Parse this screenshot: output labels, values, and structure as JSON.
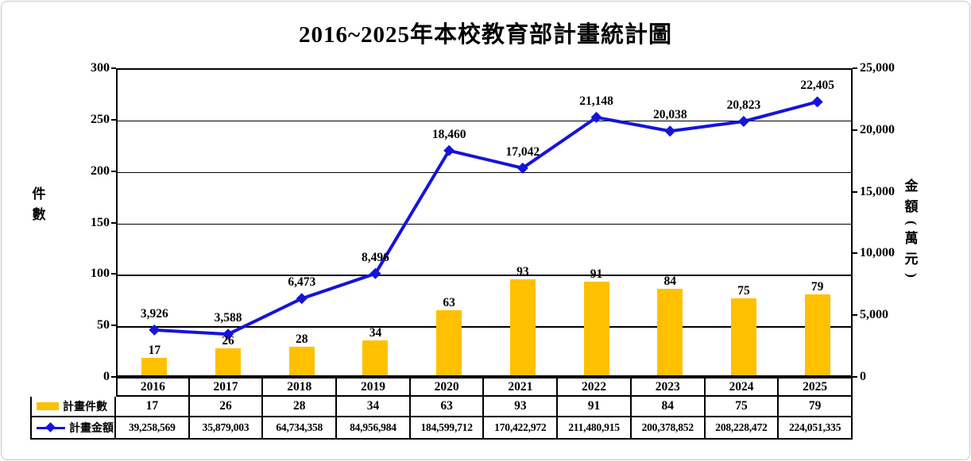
{
  "title": "2016~2025年本校教育部計畫統計圖",
  "colors": {
    "bar": "#FFC000",
    "line": "#1414DB",
    "axis": "#000000",
    "frame_border": "#c9c9c9"
  },
  "chart_data": {
    "type": "bar+line",
    "title": "2016~2025年本校教育部計畫統計圖",
    "categories": [
      "2016",
      "2017",
      "2018",
      "2019",
      "2020",
      "2021",
      "2022",
      "2023",
      "2024",
      "2025"
    ],
    "series": [
      {
        "name": "計畫件數",
        "type": "bar",
        "axis": "left",
        "color": "#FFC000",
        "values": [
          17,
          26,
          28,
          34,
          63,
          93,
          91,
          84,
          75,
          79
        ],
        "labels": [
          "17",
          "26",
          "28",
          "34",
          "63",
          "93",
          "91",
          "84",
          "75",
          "79"
        ]
      },
      {
        "name": "計畫金額",
        "type": "line",
        "axis": "right",
        "color": "#1414DB",
        "values": [
          3926,
          3588,
          6473,
          8496,
          18460,
          17042,
          21148,
          20038,
          20823,
          22405
        ],
        "labels": [
          "3,926",
          "3,588",
          "6,473",
          "8,496",
          "18,460",
          "17,042",
          "21,148",
          "20,038",
          "20,823",
          "22,405"
        ]
      }
    ],
    "left_axis": {
      "title": "件數",
      "min": 0,
      "max": 300,
      "step": 50,
      "tick_labels": [
        "0",
        "50",
        "100",
        "150",
        "200",
        "250",
        "300"
      ]
    },
    "right_axis": {
      "title": "金額(萬元)",
      "min": 0,
      "max": 25000,
      "step": 5000,
      "tick_labels": [
        "0",
        "5,000",
        "10,000",
        "15,000",
        "20,000",
        "25,000"
      ]
    },
    "grid": true,
    "legend_position": "table-left"
  },
  "table": {
    "year_header": [
      "2016",
      "2017",
      "2018",
      "2019",
      "2020",
      "2021",
      "2022",
      "2023",
      "2024",
      "2025"
    ],
    "rows": [
      {
        "legend": "計畫件數",
        "marker": "bar-swatch",
        "values": [
          "17",
          "26",
          "28",
          "34",
          "63",
          "93",
          "91",
          "84",
          "75",
          "79"
        ]
      },
      {
        "legend": "計畫金額",
        "marker": "line-swatch",
        "values": [
          "39,258,569",
          "35,879,003",
          "64,734,358",
          "84,956,984",
          "184,599,712",
          "170,422,972",
          "211,480,915",
          "200,378,852",
          "208,228,472",
          "224,051,335"
        ]
      }
    ]
  }
}
